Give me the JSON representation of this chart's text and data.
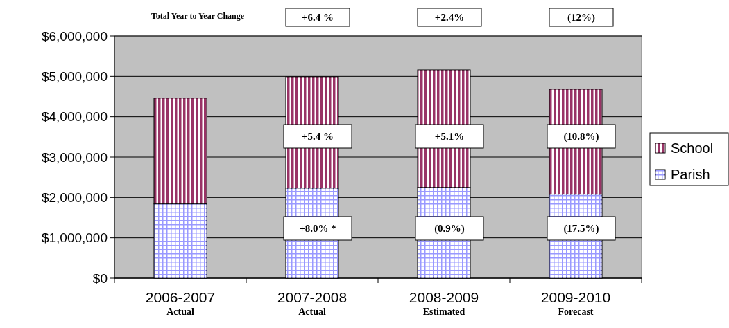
{
  "chart_data": {
    "type": "bar",
    "stacked": true,
    "categories": [
      "2006-2007$_{Actual}$",
      "2007-2008$_{Actual}$",
      "2008-2009$_{Estimated}$",
      "2009-2010$_{Forecast}$"
    ],
    "series": [
      {
        "name": "Parish",
        "color": "#9999ff",
        "values": [
          1840000,
          2230000,
          2250000,
          2080000
        ]
      },
      {
        "name": "School",
        "color": "#993366",
        "values": [
          2620000,
          2760000,
          2910000,
          2600000
        ]
      }
    ],
    "ylim": [
      0,
      6000000
    ],
    "yticks": [
      {
        "value": 0,
        "label": "$0"
      },
      {
        "value": 1000000,
        "label": "$1,000,000"
      },
      {
        "value": 2000000,
        "label": "$2,000,000"
      },
      {
        "value": 3000000,
        "label": "$3,000,000"
      },
      {
        "value": 4000000,
        "label": "$4,000,000"
      },
      {
        "value": 5000000,
        "label": "$5,000,000"
      },
      {
        "value": 6000000,
        "label": "$6,000,000"
      }
    ],
    "grid": "y",
    "legend": "right",
    "annotations": [
      "Total Year to Year Change",
      "+6.4 %",
      "+2.4%",
      "(12%)",
      "+5.4 %",
      "+8.0% *",
      "+5.1%",
      "(0.9%)",
      "(10.8%)",
      "(17.5%)"
    ]
  }
}
